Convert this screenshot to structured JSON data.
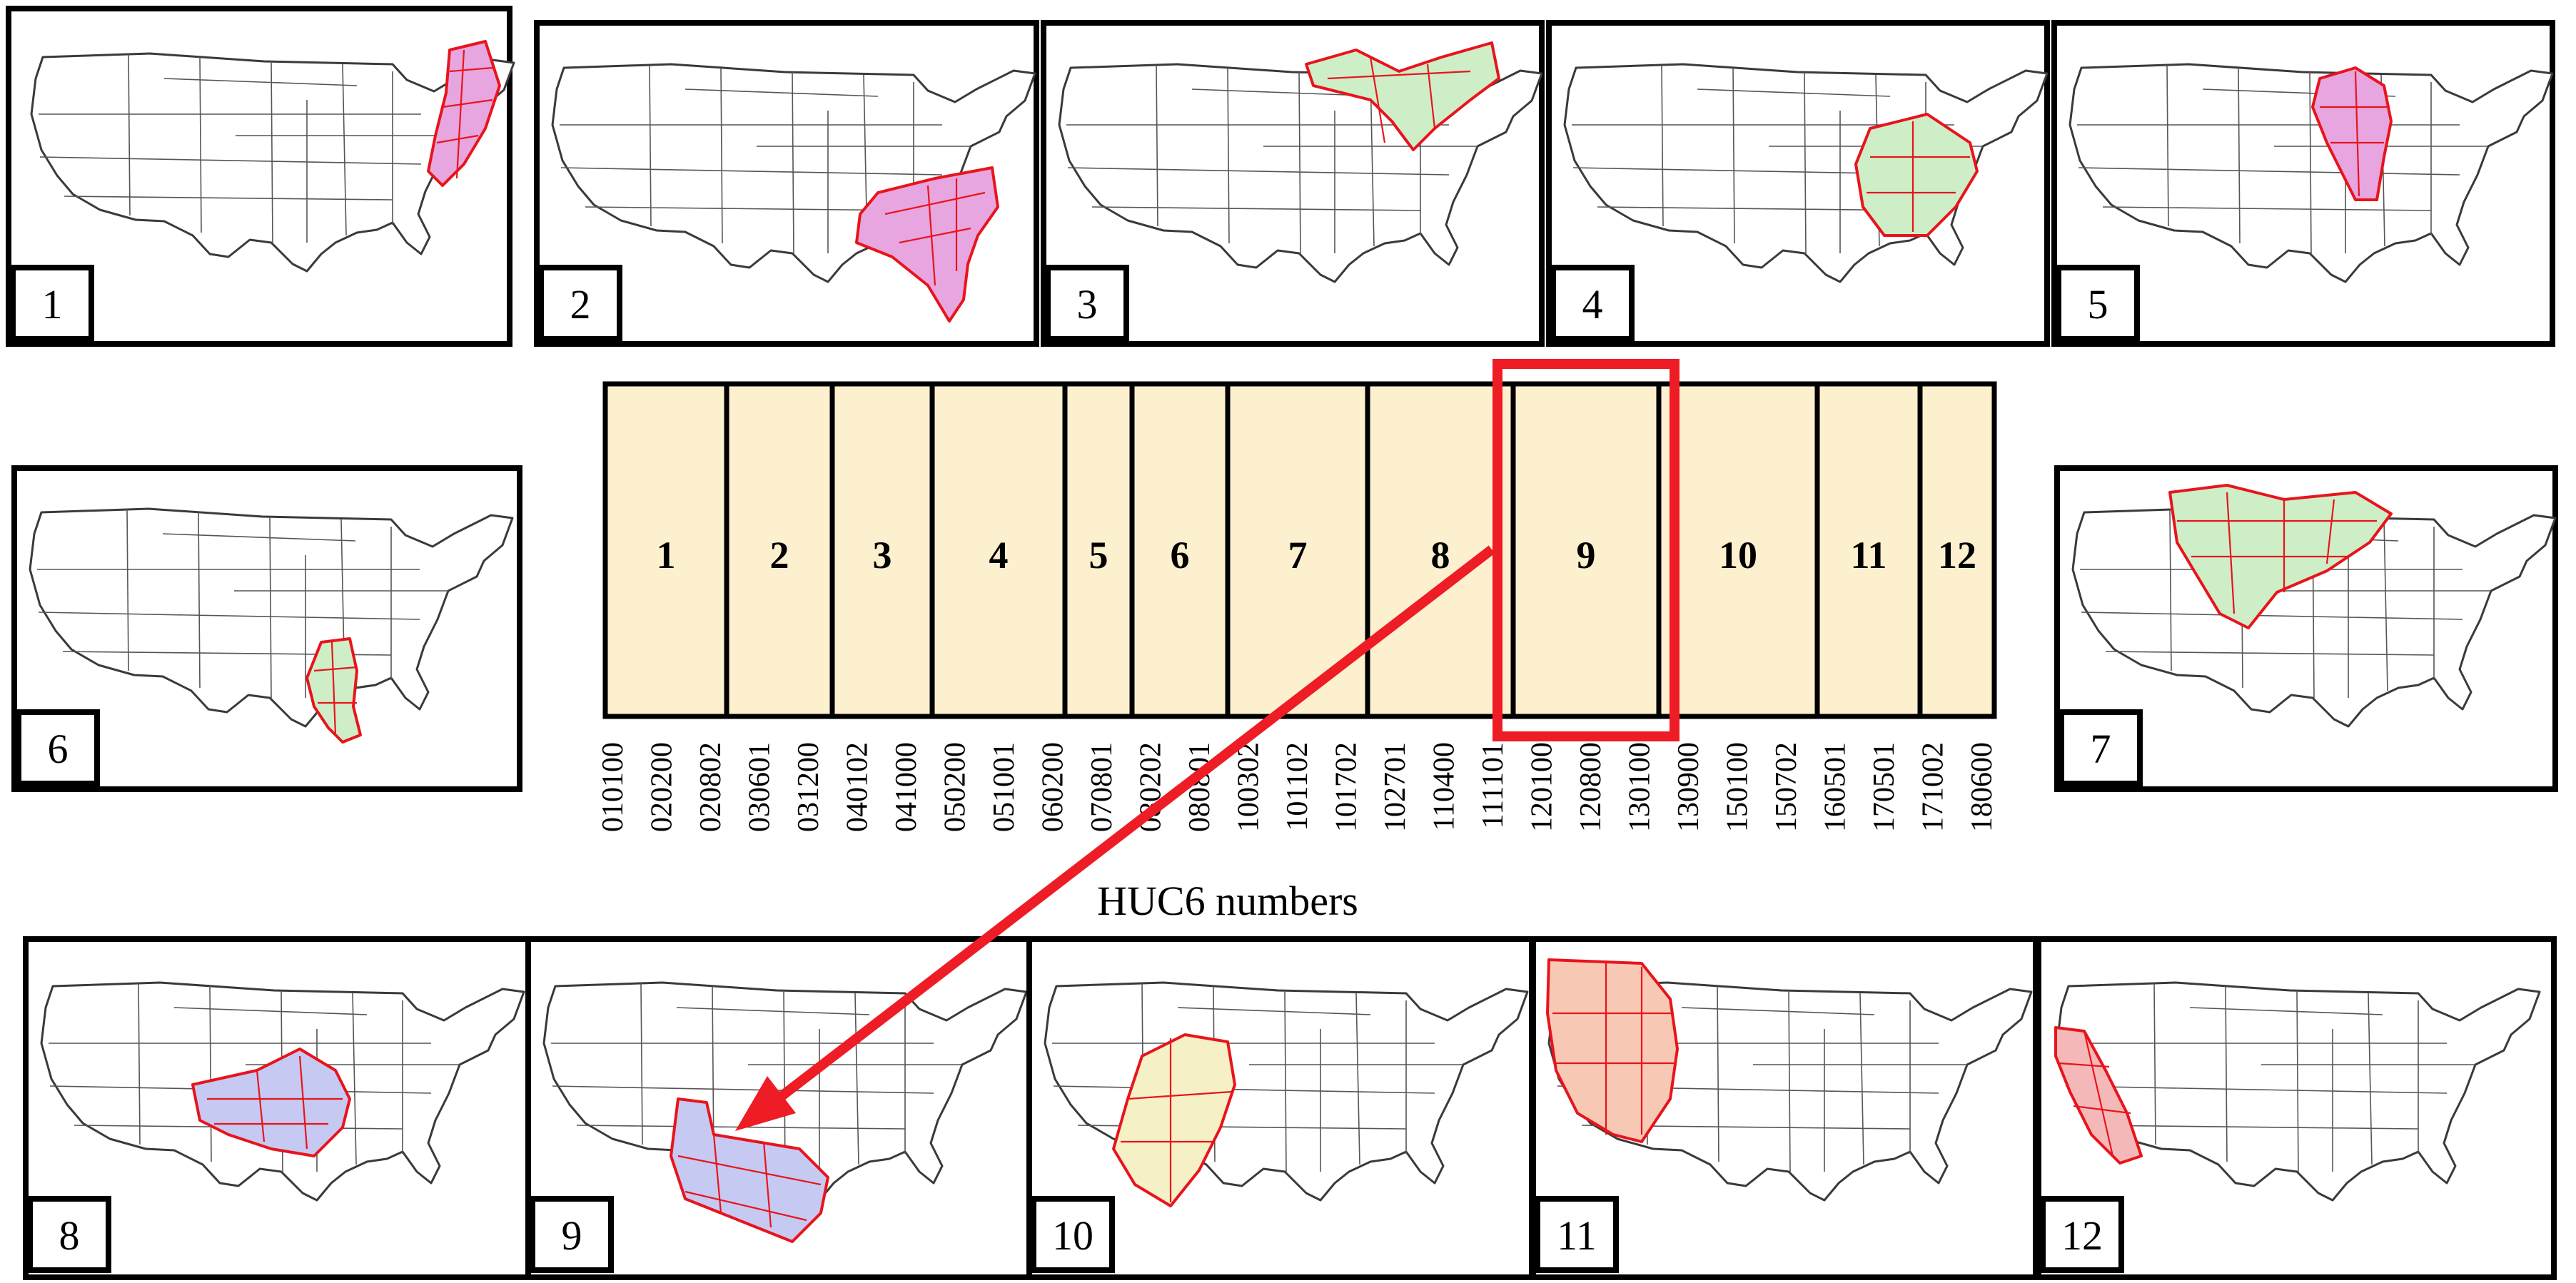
{
  "panels": [
    {
      "number": "1",
      "fill": "#e7a6e0"
    },
    {
      "number": "2",
      "fill": "#e7a6e0"
    },
    {
      "number": "3",
      "fill": "#cdeec7"
    },
    {
      "number": "4",
      "fill": "#cdeec7"
    },
    {
      "number": "5",
      "fill": "#e7a6e0"
    },
    {
      "number": "6",
      "fill": "#cdeec7"
    },
    {
      "number": "7",
      "fill": "#cdeec7"
    },
    {
      "number": "8",
      "fill": "#c6c9f2"
    },
    {
      "number": "9",
      "fill": "#c6c9f2"
    },
    {
      "number": "10",
      "fill": "#f6f0c6"
    },
    {
      "number": "11",
      "fill": "#f7c9b4"
    },
    {
      "number": "12",
      "fill": "#f5b8b8"
    }
  ],
  "bar": {
    "segments": [
      "1",
      "2",
      "3",
      "4",
      "5",
      "6",
      "7",
      "8",
      "9",
      "10",
      "11",
      "12"
    ],
    "fill": "#fdf0cf",
    "highlighted": "9"
  },
  "huc6_ticks": [
    "010100",
    "020200",
    "020802",
    "030601",
    "031200",
    "040102",
    "041000",
    "050200",
    "051001",
    "060200",
    "070801",
    "080202",
    "080801",
    "100302",
    "101102",
    "101702",
    "102701",
    "110400",
    "111101",
    "120100",
    "120800",
    "130100",
    "130900",
    "150100",
    "150702",
    "160501",
    "170501",
    "171002",
    "180600"
  ],
  "axis_title": "HUC6 numbers",
  "colors": {
    "highlight": "#ee1c24",
    "region_border": "#e8141c"
  }
}
